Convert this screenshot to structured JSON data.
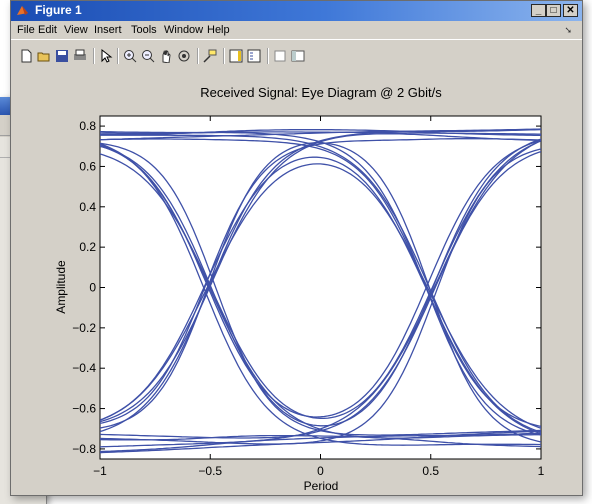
{
  "background_window": {
    "buttons": [
      "□",
      "✕"
    ],
    "menu_arrow": "➘"
  },
  "window": {
    "title": "Figure 1",
    "controls": {
      "minimize": "_",
      "maximize": "□",
      "close": "✕"
    },
    "menu": [
      "File",
      "Edit",
      "View",
      "Insert",
      "Tools",
      "Window",
      "Help"
    ],
    "menu_arrow": "➘",
    "toolbar_icons": [
      "new-figure-icon",
      "open-file-icon",
      "save-icon",
      "print-icon",
      "edit-plot-arrow-icon",
      "zoom-in-icon",
      "zoom-out-icon",
      "pan-hand-icon",
      "rotate-3d-icon",
      "data-cursor-icon",
      "colorbar-icon",
      "legend-icon",
      "hide-plot-tools-icon",
      "show-plot-tools-icon"
    ]
  },
  "colors": {
    "title_bar": "#2457c5",
    "line": "#3f51a8",
    "window_bg": "#d4d0c8"
  },
  "chart_data": {
    "type": "line",
    "title": "Received Signal: Eye Diagram @ 2 Gbit/s",
    "xlabel": "Period",
    "ylabel": "Amplitude",
    "xlim": [
      -1,
      1
    ],
    "ylim": [
      -0.85,
      0.85
    ],
    "xticks": [
      "−1",
      "−0.5",
      "0",
      "0.5",
      "1"
    ],
    "yticks": [
      "−0.8",
      "−0.6",
      "−0.4",
      "−0.2",
      "0",
      "0.2",
      "0.4",
      "0.6",
      "0.8"
    ],
    "grid": false,
    "eye_crossings": [
      -0.5,
      0.5
    ],
    "levels": {
      "high": 0.8,
      "low": -0.8
    }
  }
}
